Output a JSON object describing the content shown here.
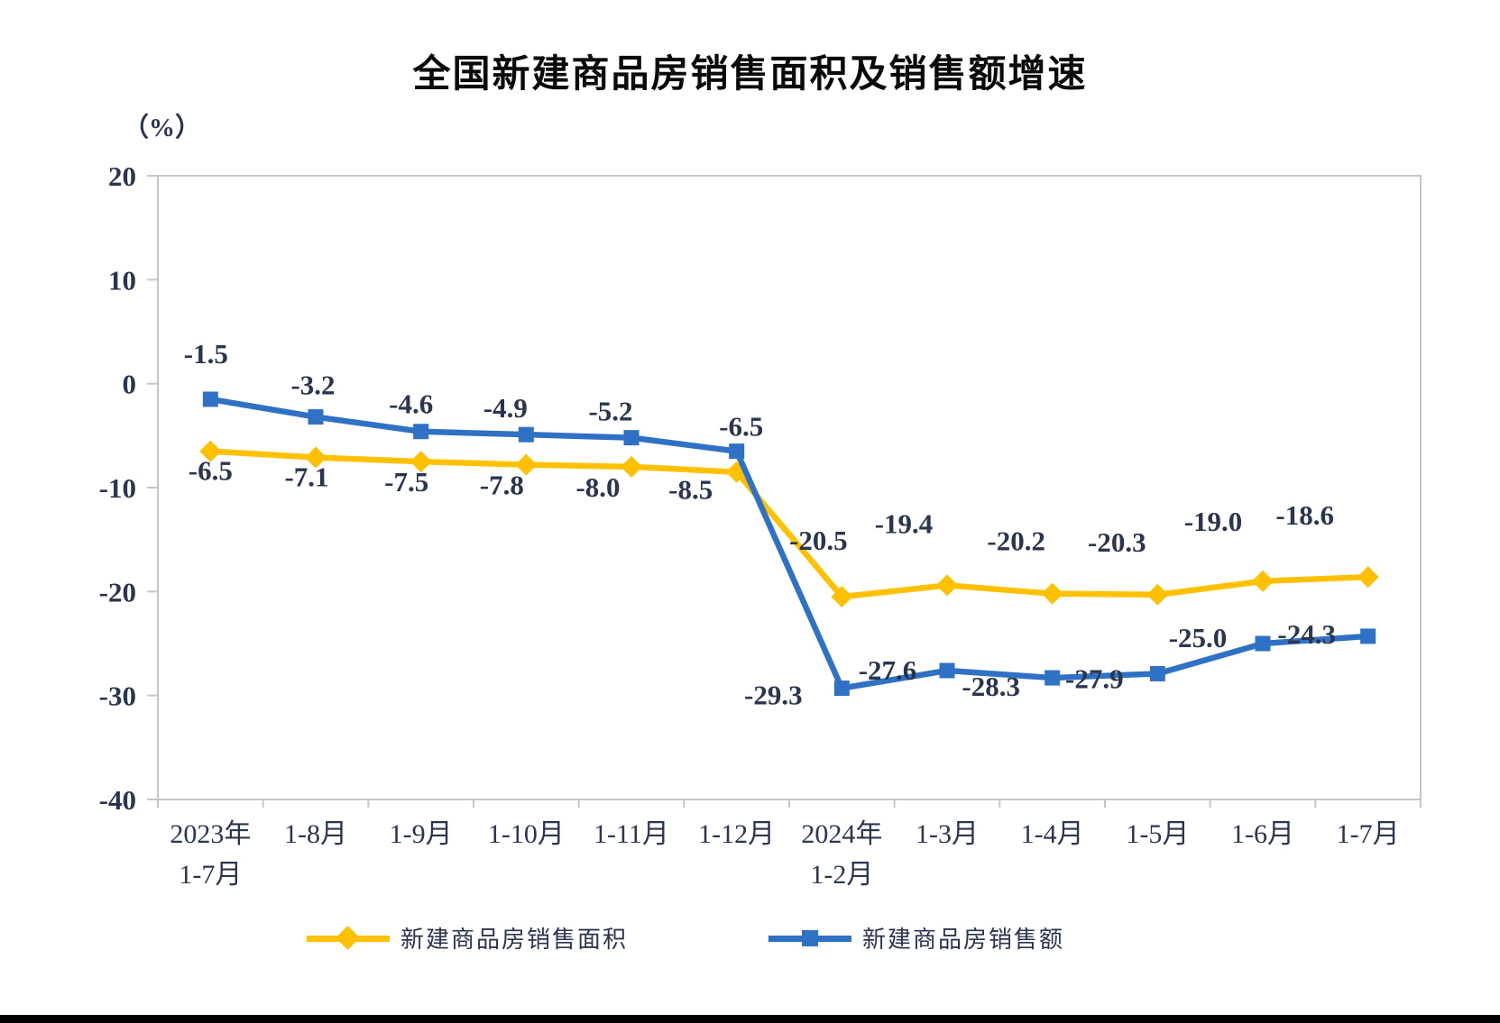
{
  "chart_data": {
    "type": "line",
    "title": "全国新建商品房销售面积及销售额增速",
    "unit_label": "（%）",
    "categories": [
      "2023年\n1-7月",
      "1-8月",
      "1-9月",
      "1-10月",
      "1-11月",
      "1-12月",
      "2024年\n1-2月",
      "1-3月",
      "1-4月",
      "1-5月",
      "1-6月",
      "1-7月"
    ],
    "series": [
      {
        "name": "新建商品房销售面积",
        "color": "#FFC000",
        "marker": "diamond",
        "values": [
          -6.5,
          -7.1,
          -7.5,
          -7.8,
          -8.0,
          -8.5,
          -20.5,
          -19.4,
          -20.2,
          -20.3,
          -19.0,
          -18.6
        ],
        "label_offsets": [
          [
            0,
            32
          ],
          [
            -10,
            32
          ],
          [
            -16,
            33
          ],
          [
            -27,
            33
          ],
          [
            -37,
            33
          ],
          [
            -51,
            30
          ],
          [
            -26,
            -52
          ],
          [
            -48,
            -58
          ],
          [
            -40,
            -48
          ],
          [
            -45,
            -48
          ],
          [
            -55,
            -56
          ],
          [
            -70,
            -58
          ]
        ]
      },
      {
        "name": "新建商品房销售额",
        "color": "#2F72C5",
        "marker": "square",
        "values": [
          -1.5,
          -3.2,
          -4.6,
          -4.9,
          -5.2,
          -6.5,
          -29.3,
          -27.6,
          -28.3,
          -27.9,
          -25.0,
          -24.3
        ],
        "label_offsets": [
          [
            -5,
            -40
          ],
          [
            -3,
            -25
          ],
          [
            -11,
            -20
          ],
          [
            -23,
            -19
          ],
          [
            -23,
            -19
          ],
          [
            5,
            -17
          ],
          [
            -76,
            18
          ],
          [
            -66,
            10
          ],
          [
            -68,
            20
          ],
          [
            -70,
            16
          ],
          [
            -72,
            4
          ],
          [
            -68,
            8
          ]
        ]
      }
    ],
    "y_axis": {
      "min": -40,
      "max": 20,
      "step": 10,
      "tick_labels": [
        "20",
        "10",
        "0",
        "-10",
        "-20",
        "-30",
        "-40"
      ]
    },
    "grid": false,
    "legend_position": "bottom",
    "text_color": "#2a3550",
    "axis_color": "#c6c6c6"
  }
}
